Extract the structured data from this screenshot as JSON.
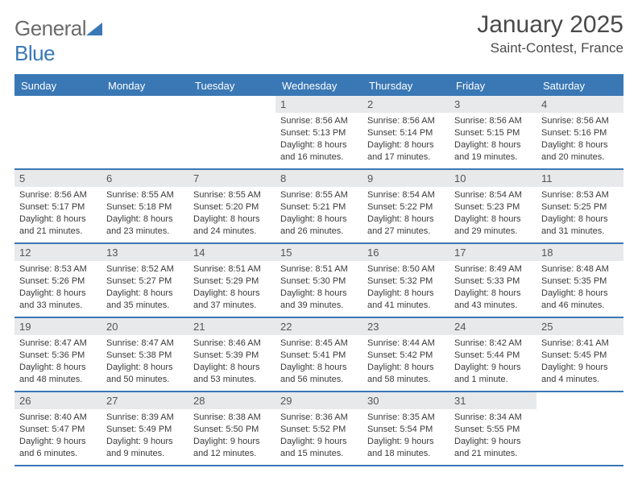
{
  "logo": {
    "text1": "General",
    "text2": "Blue"
  },
  "title": "January 2025",
  "location": "Saint-Contest, France",
  "colors": {
    "header_bg": "#3a78b5",
    "header_text": "#ffffff",
    "date_bar_bg": "#e8e9ea",
    "border": "#3a78b5",
    "body_text": "#3a3a3a"
  },
  "day_names": [
    "Sunday",
    "Monday",
    "Tuesday",
    "Wednesday",
    "Thursday",
    "Friday",
    "Saturday"
  ],
  "weeks": [
    [
      {
        "empty": true
      },
      {
        "empty": true
      },
      {
        "empty": true
      },
      {
        "date": "1",
        "sunrise": "Sunrise: 8:56 AM",
        "sunset": "Sunset: 5:13 PM",
        "daylight": "Daylight: 8 hours and 16 minutes."
      },
      {
        "date": "2",
        "sunrise": "Sunrise: 8:56 AM",
        "sunset": "Sunset: 5:14 PM",
        "daylight": "Daylight: 8 hours and 17 minutes."
      },
      {
        "date": "3",
        "sunrise": "Sunrise: 8:56 AM",
        "sunset": "Sunset: 5:15 PM",
        "daylight": "Daylight: 8 hours and 19 minutes."
      },
      {
        "date": "4",
        "sunrise": "Sunrise: 8:56 AM",
        "sunset": "Sunset: 5:16 PM",
        "daylight": "Daylight: 8 hours and 20 minutes."
      }
    ],
    [
      {
        "date": "5",
        "sunrise": "Sunrise: 8:56 AM",
        "sunset": "Sunset: 5:17 PM",
        "daylight": "Daylight: 8 hours and 21 minutes."
      },
      {
        "date": "6",
        "sunrise": "Sunrise: 8:55 AM",
        "sunset": "Sunset: 5:18 PM",
        "daylight": "Daylight: 8 hours and 23 minutes."
      },
      {
        "date": "7",
        "sunrise": "Sunrise: 8:55 AM",
        "sunset": "Sunset: 5:20 PM",
        "daylight": "Daylight: 8 hours and 24 minutes."
      },
      {
        "date": "8",
        "sunrise": "Sunrise: 8:55 AM",
        "sunset": "Sunset: 5:21 PM",
        "daylight": "Daylight: 8 hours and 26 minutes."
      },
      {
        "date": "9",
        "sunrise": "Sunrise: 8:54 AM",
        "sunset": "Sunset: 5:22 PM",
        "daylight": "Daylight: 8 hours and 27 minutes."
      },
      {
        "date": "10",
        "sunrise": "Sunrise: 8:54 AM",
        "sunset": "Sunset: 5:23 PM",
        "daylight": "Daylight: 8 hours and 29 minutes."
      },
      {
        "date": "11",
        "sunrise": "Sunrise: 8:53 AM",
        "sunset": "Sunset: 5:25 PM",
        "daylight": "Daylight: 8 hours and 31 minutes."
      }
    ],
    [
      {
        "date": "12",
        "sunrise": "Sunrise: 8:53 AM",
        "sunset": "Sunset: 5:26 PM",
        "daylight": "Daylight: 8 hours and 33 minutes."
      },
      {
        "date": "13",
        "sunrise": "Sunrise: 8:52 AM",
        "sunset": "Sunset: 5:27 PM",
        "daylight": "Daylight: 8 hours and 35 minutes."
      },
      {
        "date": "14",
        "sunrise": "Sunrise: 8:51 AM",
        "sunset": "Sunset: 5:29 PM",
        "daylight": "Daylight: 8 hours and 37 minutes."
      },
      {
        "date": "15",
        "sunrise": "Sunrise: 8:51 AM",
        "sunset": "Sunset: 5:30 PM",
        "daylight": "Daylight: 8 hours and 39 minutes."
      },
      {
        "date": "16",
        "sunrise": "Sunrise: 8:50 AM",
        "sunset": "Sunset: 5:32 PM",
        "daylight": "Daylight: 8 hours and 41 minutes."
      },
      {
        "date": "17",
        "sunrise": "Sunrise: 8:49 AM",
        "sunset": "Sunset: 5:33 PM",
        "daylight": "Daylight: 8 hours and 43 minutes."
      },
      {
        "date": "18",
        "sunrise": "Sunrise: 8:48 AM",
        "sunset": "Sunset: 5:35 PM",
        "daylight": "Daylight: 8 hours and 46 minutes."
      }
    ],
    [
      {
        "date": "19",
        "sunrise": "Sunrise: 8:47 AM",
        "sunset": "Sunset: 5:36 PM",
        "daylight": "Daylight: 8 hours and 48 minutes."
      },
      {
        "date": "20",
        "sunrise": "Sunrise: 8:47 AM",
        "sunset": "Sunset: 5:38 PM",
        "daylight": "Daylight: 8 hours and 50 minutes."
      },
      {
        "date": "21",
        "sunrise": "Sunrise: 8:46 AM",
        "sunset": "Sunset: 5:39 PM",
        "daylight": "Daylight: 8 hours and 53 minutes."
      },
      {
        "date": "22",
        "sunrise": "Sunrise: 8:45 AM",
        "sunset": "Sunset: 5:41 PM",
        "daylight": "Daylight: 8 hours and 56 minutes."
      },
      {
        "date": "23",
        "sunrise": "Sunrise: 8:44 AM",
        "sunset": "Sunset: 5:42 PM",
        "daylight": "Daylight: 8 hours and 58 minutes."
      },
      {
        "date": "24",
        "sunrise": "Sunrise: 8:42 AM",
        "sunset": "Sunset: 5:44 PM",
        "daylight": "Daylight: 9 hours and 1 minute."
      },
      {
        "date": "25",
        "sunrise": "Sunrise: 8:41 AM",
        "sunset": "Sunset: 5:45 PM",
        "daylight": "Daylight: 9 hours and 4 minutes."
      }
    ],
    [
      {
        "date": "26",
        "sunrise": "Sunrise: 8:40 AM",
        "sunset": "Sunset: 5:47 PM",
        "daylight": "Daylight: 9 hours and 6 minutes."
      },
      {
        "date": "27",
        "sunrise": "Sunrise: 8:39 AM",
        "sunset": "Sunset: 5:49 PM",
        "daylight": "Daylight: 9 hours and 9 minutes."
      },
      {
        "date": "28",
        "sunrise": "Sunrise: 8:38 AM",
        "sunset": "Sunset: 5:50 PM",
        "daylight": "Daylight: 9 hours and 12 minutes."
      },
      {
        "date": "29",
        "sunrise": "Sunrise: 8:36 AM",
        "sunset": "Sunset: 5:52 PM",
        "daylight": "Daylight: 9 hours and 15 minutes."
      },
      {
        "date": "30",
        "sunrise": "Sunrise: 8:35 AM",
        "sunset": "Sunset: 5:54 PM",
        "daylight": "Daylight: 9 hours and 18 minutes."
      },
      {
        "date": "31",
        "sunrise": "Sunrise: 8:34 AM",
        "sunset": "Sunset: 5:55 PM",
        "daylight": "Daylight: 9 hours and 21 minutes."
      },
      {
        "empty": true
      }
    ]
  ]
}
